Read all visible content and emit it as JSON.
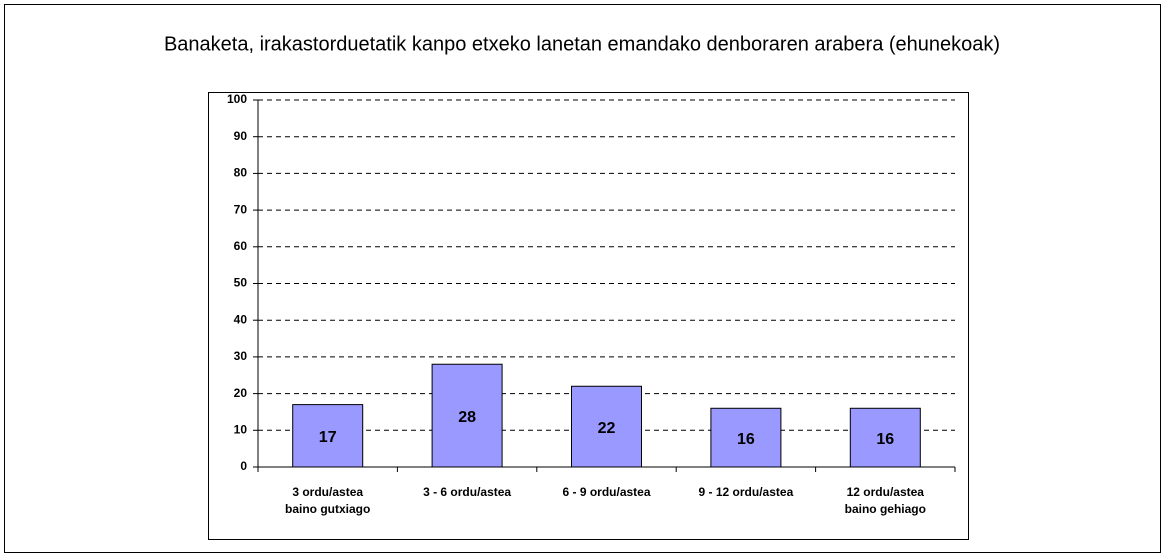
{
  "chart_data": {
    "type": "bar",
    "title": "Banaketa, irakastorduetatik kanpo etxeko lanetan emandako denboraren arabera (ehunekoak)",
    "categories": [
      [
        "3 ordu/astea",
        "baino gutxiago"
      ],
      [
        "3 - 6 ordu/astea"
      ],
      [
        "6 - 9 ordu/astea"
      ],
      [
        "9 - 12 ordu/astea"
      ],
      [
        "12 ordu/astea",
        "baino gehiago"
      ]
    ],
    "values": [
      17,
      28,
      22,
      16,
      16
    ],
    "color": "#9999ff",
    "ylim": [
      0,
      100
    ],
    "yticks": [
      0,
      10,
      20,
      30,
      40,
      50,
      60,
      70,
      80,
      90,
      100
    ],
    "grid": true
  }
}
